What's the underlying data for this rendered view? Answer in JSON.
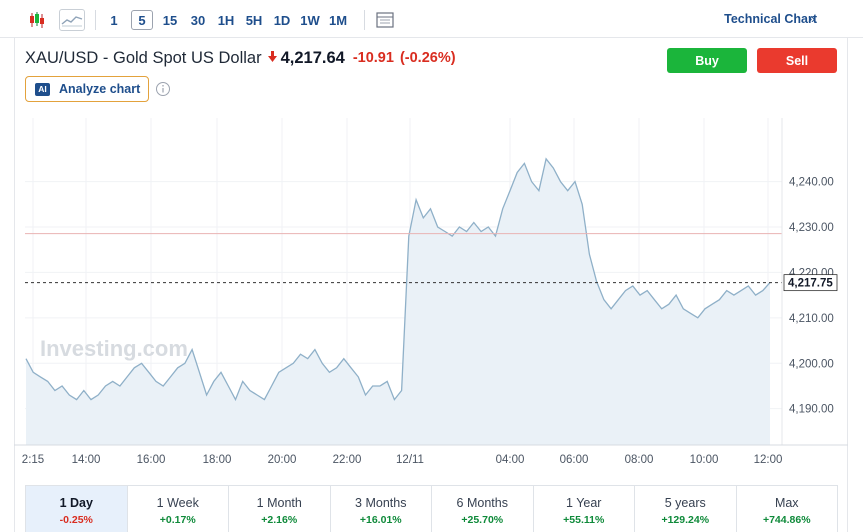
{
  "toolbar": {
    "icons": [
      "candlestick-icon",
      "area-chart-icon",
      "table-icon"
    ],
    "timeframes": [
      "1",
      "5",
      "15",
      "30",
      "1H",
      "5H",
      "1D",
      "1W",
      "1M"
    ],
    "active_timeframe": "5",
    "technical_link": "Technical Chart"
  },
  "header": {
    "instrument": "XAU/USD - Gold Spot US Dollar",
    "price": "4,217.64",
    "change": "-10.91",
    "change_pct": "(-0.26%)",
    "buy_label": "Buy",
    "sell_label": "Sell",
    "analyze_badge": "AI",
    "analyze_label": "Analyze chart"
  },
  "colors": {
    "accent": "#1e4e8c",
    "buy": "#1bb53b",
    "sell": "#ea3a2e",
    "negative": "#d92d20",
    "positive": "#0f8a3a",
    "line": "#8fb0c8",
    "area": "#eaf1f7"
  },
  "chart_data": {
    "type": "area",
    "x_ticks": [
      "2:15",
      "14:00",
      "16:00",
      "18:00",
      "20:00",
      "22:00",
      "12/11",
      "04:00",
      "06:00",
      "08:00",
      "10:00",
      "12:00"
    ],
    "y_ticks": [
      "4,190.00",
      "4,200.00",
      "4,210.00",
      "4,220.00",
      "4,230.00",
      "4,240.00"
    ],
    "ylim": [
      4182,
      4254
    ],
    "previous_close": 4228.55,
    "last_value": 4217.75,
    "last_label": "4,217.75",
    "watermark": "Investing.com",
    "grid": true,
    "values": [
      4201,
      4198,
      4197,
      4196,
      4194,
      4195,
      4193,
      4192,
      4194,
      4192,
      4193,
      4195,
      4196,
      4195,
      4197,
      4199,
      4200,
      4198,
      4196,
      4195,
      4197,
      4199,
      4200,
      4203,
      4198,
      4193,
      4196,
      4198,
      4195,
      4192,
      4196,
      4194,
      4193,
      4192,
      4195,
      4198,
      4199,
      4200,
      4202,
      4201,
      4203,
      4200,
      4198,
      4199,
      4201,
      4199,
      4197,
      4193,
      4195,
      4195,
      4196,
      4192,
      4194,
      4228,
      4236,
      4232,
      4234,
      4230,
      4229,
      4228,
      4230,
      4229,
      4231,
      4229,
      4230,
      4228,
      4234,
      4238,
      4242,
      4244,
      4240,
      4238,
      4245,
      4243,
      4240,
      4238,
      4240,
      4235,
      4224,
      4218,
      4214,
      4212,
      4214,
      4216,
      4217,
      4215,
      4216,
      4214,
      4212,
      4213,
      4215,
      4212,
      4211,
      4210,
      4212,
      4213,
      4214,
      4216,
      4215,
      4216,
      4217,
      4215,
      4216,
      4217.75
    ]
  },
  "periods": [
    {
      "label": "1 Day",
      "change": "-0.25%",
      "dir": "neg"
    },
    {
      "label": "1 Week",
      "change": "+0.17%",
      "dir": "pos"
    },
    {
      "label": "1 Month",
      "change": "+2.16%",
      "dir": "pos"
    },
    {
      "label": "3 Months",
      "change": "+16.01%",
      "dir": "pos"
    },
    {
      "label": "6 Months",
      "change": "+25.70%",
      "dir": "pos"
    },
    {
      "label": "1 Year",
      "change": "+55.11%",
      "dir": "pos"
    },
    {
      "label": "5 years",
      "change": "+129.24%",
      "dir": "pos"
    },
    {
      "label": "Max",
      "change": "+744.86%",
      "dir": "pos"
    }
  ],
  "active_period": "1 Day"
}
